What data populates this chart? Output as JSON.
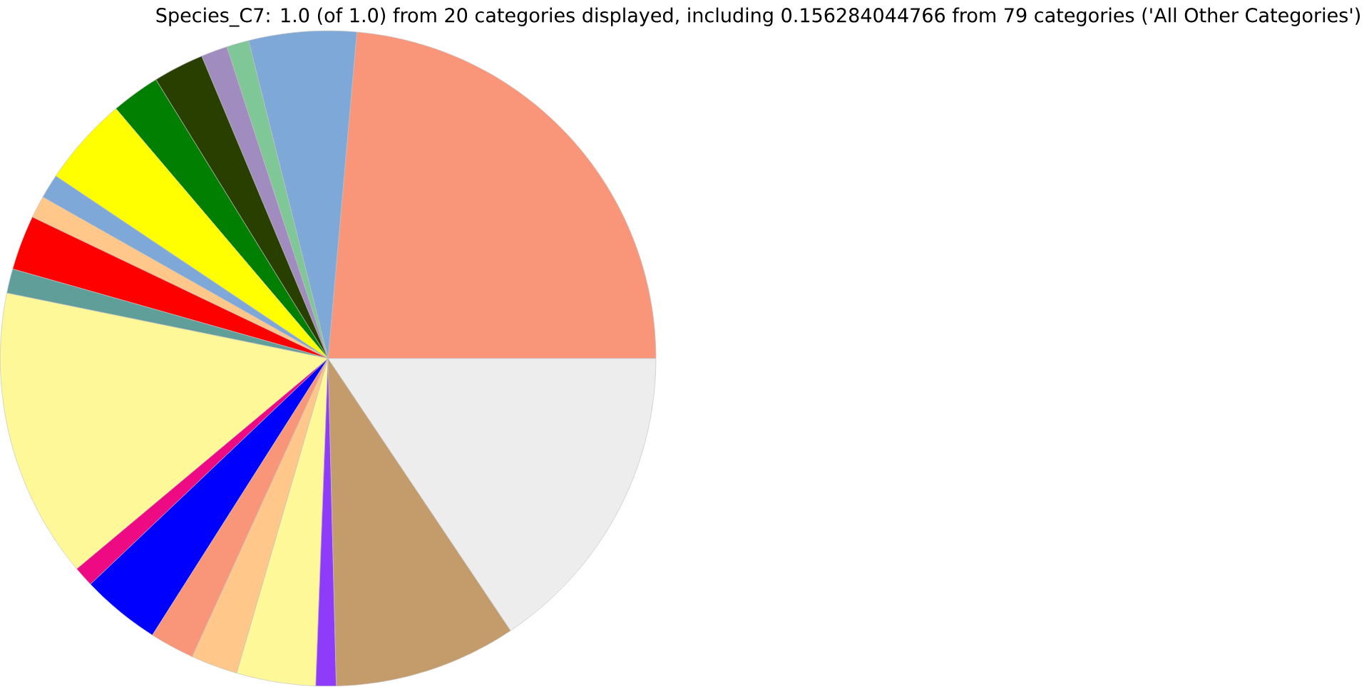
{
  "chart_data": {
    "type": "pie",
    "title": "Species_C7: 1.0 (of 1.0) from 20 categories displayed, including 0.156284044766 from 79 categories ('All Other Categories')",
    "categories": [
      null,
      null,
      null,
      null,
      null,
      null,
      null,
      null,
      null,
      null,
      null,
      null,
      null,
      null,
      null,
      null,
      null,
      null,
      null,
      null
    ],
    "values": [
      23.6,
      5.3,
      1.1,
      1.3,
      2.5,
      2.4,
      4.4,
      1.2,
      1.1,
      2.7,
      1.2,
      14.3,
      1.0,
      3.9,
      2.2,
      2.3,
      3.9,
      1.0,
      9.0,
      15.6
    ],
    "colors": [
      "#f9967a",
      "#7ea8d8",
      "#7fc796",
      "#a18cc0",
      "#283f00",
      "#007f00",
      "#ffff00",
      "#7ea8d8",
      "#ffc88a",
      "#ff0000",
      "#5f9e99",
      "#fef898",
      "#ee0a82",
      "#0000ff",
      "#f9967a",
      "#ffc88a",
      "#fef898",
      "#8e3cfa",
      "#c49b6b",
      "#ededed"
    ]
  }
}
